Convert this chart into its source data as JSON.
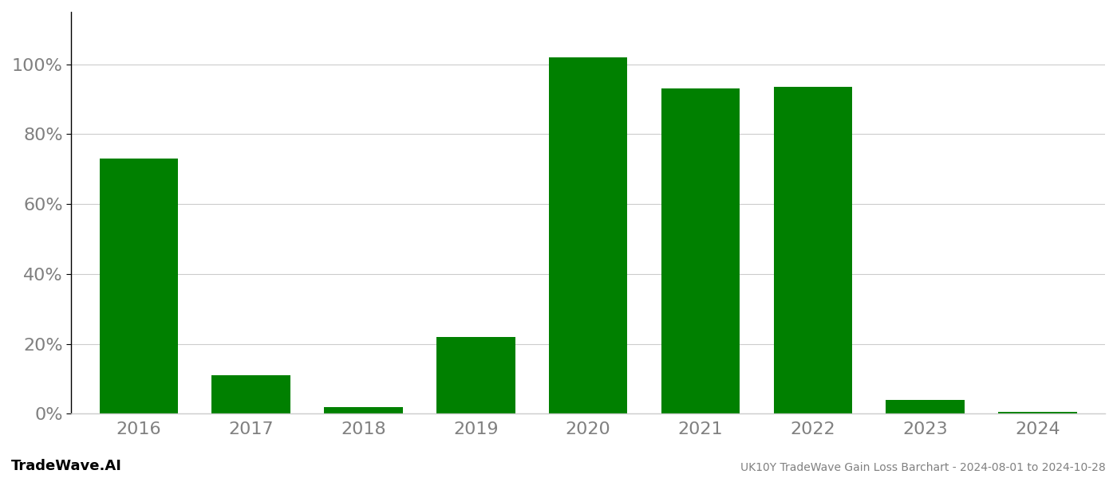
{
  "categories": [
    "2016",
    "2017",
    "2018",
    "2019",
    "2020",
    "2021",
    "2022",
    "2023",
    "2024"
  ],
  "values": [
    0.73,
    0.11,
    0.02,
    0.22,
    1.02,
    0.93,
    0.935,
    0.04,
    0.005
  ],
  "bar_color": "#008000",
  "title": "UK10Y TradeWave Gain Loss Barchart - 2024-08-01 to 2024-10-28",
  "watermark": "TradeWave.AI",
  "ylim": [
    0,
    1.15
  ],
  "yticks": [
    0.0,
    0.2,
    0.4,
    0.6,
    0.8,
    1.0
  ],
  "background_color": "#ffffff",
  "grid_color": "#cccccc",
  "axis_label_color": "#808080",
  "title_color": "#808080",
  "watermark_color": "#000000",
  "title_fontsize": 10,
  "watermark_fontsize": 13,
  "tick_fontsize": 16,
  "bar_width": 0.7
}
